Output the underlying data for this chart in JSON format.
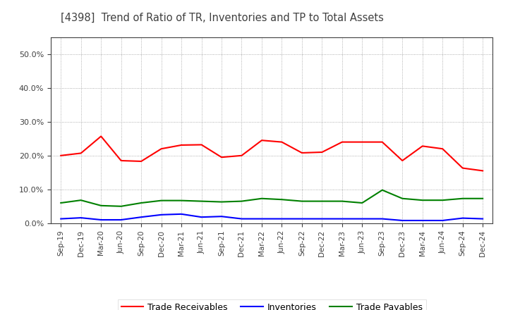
{
  "title": "[4398]  Trend of Ratio of TR, Inventories and TP to Total Assets",
  "x_labels": [
    "Sep-19",
    "Dec-19",
    "Mar-20",
    "Jun-20",
    "Sep-20",
    "Dec-20",
    "Mar-21",
    "Jun-21",
    "Sep-21",
    "Dec-21",
    "Mar-22",
    "Jun-22",
    "Sep-22",
    "Dec-22",
    "Mar-23",
    "Jun-23",
    "Sep-23",
    "Dec-23",
    "Mar-24",
    "Jun-24",
    "Sep-24",
    "Dec-24"
  ],
  "trade_receivables": [
    0.2,
    0.207,
    0.257,
    0.185,
    0.183,
    0.22,
    0.231,
    0.232,
    0.195,
    0.2,
    0.245,
    0.24,
    0.208,
    0.21,
    0.24,
    0.24,
    0.24,
    0.185,
    0.228,
    0.22,
    0.163,
    0.155
  ],
  "inventories": [
    0.013,
    0.016,
    0.01,
    0.01,
    0.018,
    0.025,
    0.027,
    0.018,
    0.02,
    0.013,
    0.013,
    0.013,
    0.013,
    0.013,
    0.013,
    0.013,
    0.013,
    0.008,
    0.008,
    0.008,
    0.015,
    0.013
  ],
  "trade_payables": [
    0.06,
    0.068,
    0.052,
    0.05,
    0.06,
    0.067,
    0.067,
    0.065,
    0.063,
    0.065,
    0.073,
    0.07,
    0.065,
    0.065,
    0.065,
    0.06,
    0.098,
    0.073,
    0.068,
    0.068,
    0.073,
    0.073
  ],
  "tr_color": "#FF0000",
  "inv_color": "#0000FF",
  "tp_color": "#008000",
  "ylim": [
    0.0,
    0.55
  ],
  "yticks": [
    0.0,
    0.1,
    0.2,
    0.3,
    0.4,
    0.5
  ],
  "background_color": "#FFFFFF",
  "plot_bg_color": "#FFFFFF",
  "grid_color": "#999999",
  "title_color": "#404040",
  "tick_color": "#404040"
}
